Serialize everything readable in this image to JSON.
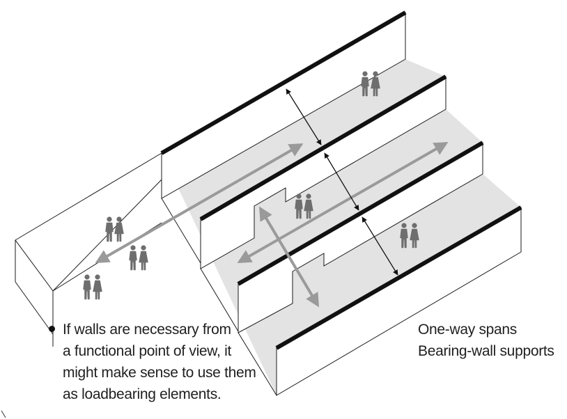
{
  "note": {
    "lines": [
      "If walls are necessary from",
      "a functional point of view, it",
      "might make sense to use them",
      "as loadbearing elements."
    ]
  },
  "legend": {
    "lines": [
      "One-way spans",
      "Bearing-wall supports"
    ]
  },
  "colors": {
    "wall_top": "#111111",
    "floor": "#e3e3e3",
    "outline": "#1a1a1a",
    "circulation_arrow": "#9a9a9a",
    "span_arrow": "#111111",
    "people": "#6e6e6e"
  },
  "icons": [
    "person-pair-icon",
    "double-arrow-icon"
  ]
}
